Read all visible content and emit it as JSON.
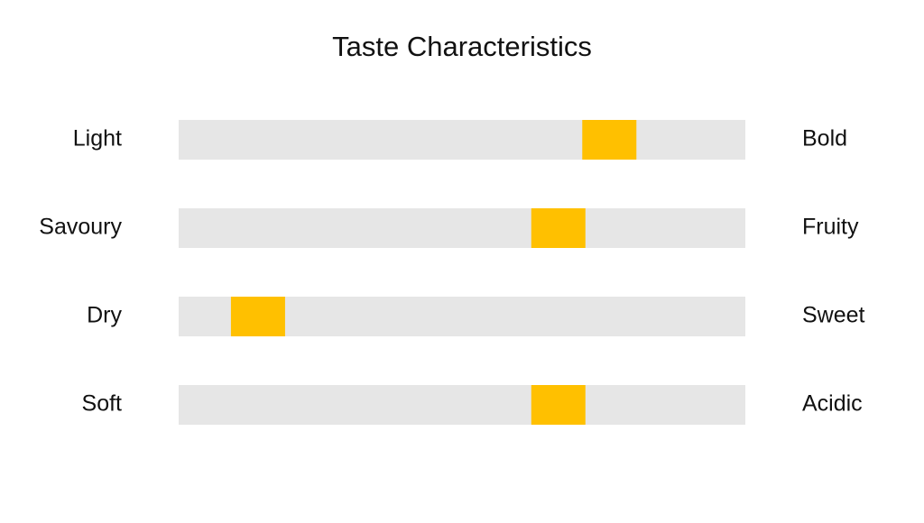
{
  "chart_data": {
    "type": "slider",
    "title": "Taste Characteristics",
    "categories": [
      "Light",
      "Savoury",
      "Dry",
      "Soft"
    ],
    "right_labels": [
      "Bold",
      "Fruity",
      "Sweet",
      "Acidic"
    ],
    "values": [
      7.6,
      6.7,
      1.4,
      6.7
    ],
    "xlim": [
      0,
      10
    ],
    "color": "#ffc000",
    "track_color": "#e6e6e6"
  }
}
